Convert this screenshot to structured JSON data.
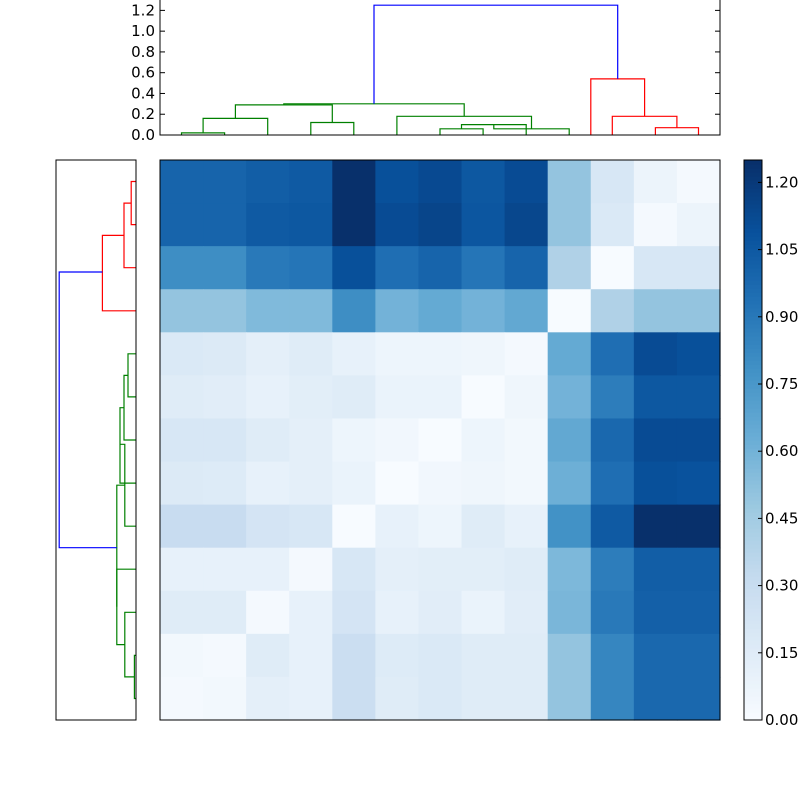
{
  "chart_data": [
    {
      "type": "dendrogram",
      "orientation": "top",
      "ylim": [
        0,
        1.3
      ],
      "y_ticks": [
        "0.0",
        "0.2",
        "0.4",
        "0.6",
        "0.8",
        "1.0",
        "1.2"
      ],
      "y_tick_values": [
        0,
        0.2,
        0.4,
        0.6,
        0.8,
        1.0,
        1.2
      ],
      "leaf_count": 13,
      "colors": {
        "cluster_a": "#008000",
        "cluster_b": "#ff0000",
        "root": "#0000ff"
      },
      "links": [
        {
          "left": 0,
          "right": 1,
          "height": 0.02,
          "color": "cluster_a"
        },
        {
          "left": "0-1",
          "right": 2,
          "height": 0.16,
          "color": "cluster_a"
        },
        {
          "left": 3,
          "right": 4,
          "height": 0.12,
          "color": "cluster_a"
        },
        {
          "left": "0-2",
          "right": "3-4",
          "height": 0.29,
          "color": "cluster_a"
        },
        {
          "left": 6,
          "right": 7,
          "height": 0.06,
          "color": "cluster_a"
        },
        {
          "left": "6-7",
          "right": 8,
          "height": 0.1,
          "color": "cluster_a"
        },
        {
          "left": "6-8",
          "right": 9,
          "height": 0.06,
          "color": "cluster_a"
        },
        {
          "left": 5,
          "right": "6-9",
          "height": 0.18,
          "color": "cluster_a"
        },
        {
          "left": "0-4",
          "right": "5-9",
          "height": 0.3,
          "color": "cluster_a"
        },
        {
          "left": 11,
          "right": 12,
          "height": 0.07,
          "color": "cluster_b"
        },
        {
          "left": 10,
          "right": "11-12",
          "height": 0.18,
          "color": "cluster_b"
        },
        {
          "left": 9.5,
          "right": "10-12",
          "height": 0.54,
          "color": "cluster_b"
        },
        {
          "left": "0-9",
          "right": "9.5-12",
          "height": 1.25,
          "color": "root"
        }
      ]
    },
    {
      "type": "dendrogram",
      "orientation": "left",
      "leaf_count": 13,
      "colors": {
        "cluster_a": "#008000",
        "cluster_b": "#ff0000",
        "root": "#0000ff"
      }
    },
    {
      "type": "heatmap",
      "rows": 13,
      "cols": 13,
      "colormap": "Blues",
      "vmin": 0,
      "vmax": 1.25,
      "values": [
        [
          1.0,
          1.0,
          1.03,
          1.05,
          1.25,
          1.1,
          1.13,
          1.06,
          1.12,
          0.5,
          0.2,
          0.07,
          0.02
        ],
        [
          1.0,
          1.0,
          1.05,
          1.06,
          1.25,
          1.12,
          1.15,
          1.07,
          1.14,
          0.5,
          0.18,
          0.02,
          0.07
        ],
        [
          0.8,
          0.8,
          0.9,
          0.92,
          1.1,
          0.95,
          1.0,
          0.92,
          1.0,
          0.4,
          0.0,
          0.2,
          0.2
        ],
        [
          0.5,
          0.5,
          0.56,
          0.56,
          0.8,
          0.6,
          0.65,
          0.6,
          0.66,
          0.0,
          0.4,
          0.5,
          0.5
        ],
        [
          0.18,
          0.17,
          0.12,
          0.15,
          0.1,
          0.06,
          0.06,
          0.05,
          0.02,
          0.65,
          0.95,
          1.12,
          1.1
        ],
        [
          0.15,
          0.14,
          0.1,
          0.13,
          0.15,
          0.08,
          0.08,
          0.0,
          0.05,
          0.6,
          0.88,
          1.06,
          1.06
        ],
        [
          0.2,
          0.2,
          0.15,
          0.12,
          0.06,
          0.04,
          0.0,
          0.06,
          0.03,
          0.66,
          0.98,
          1.12,
          1.12
        ],
        [
          0.17,
          0.16,
          0.1,
          0.12,
          0.08,
          0.0,
          0.04,
          0.05,
          0.03,
          0.62,
          0.95,
          1.1,
          1.09
        ],
        [
          0.3,
          0.3,
          0.22,
          0.2,
          0.0,
          0.1,
          0.06,
          0.15,
          0.1,
          0.78,
          1.05,
          1.25,
          1.25
        ],
        [
          0.1,
          0.1,
          0.1,
          0.02,
          0.2,
          0.12,
          0.13,
          0.13,
          0.15,
          0.57,
          0.88,
          1.03,
          1.03
        ],
        [
          0.15,
          0.15,
          0.02,
          0.1,
          0.22,
          0.1,
          0.14,
          0.08,
          0.14,
          0.58,
          0.9,
          1.02,
          1.02
        ],
        [
          0.03,
          0.02,
          0.15,
          0.1,
          0.28,
          0.16,
          0.18,
          0.15,
          0.15,
          0.5,
          0.84,
          0.98,
          0.98
        ],
        [
          0.02,
          0.03,
          0.12,
          0.1,
          0.28,
          0.15,
          0.18,
          0.15,
          0.15,
          0.5,
          0.84,
          0.98,
          0.98
        ]
      ]
    },
    {
      "type": "colorbar",
      "colormap": "Blues",
      "vmin": 0,
      "vmax": 1.25,
      "tick_labels": [
        "0.00",
        "0.15",
        "0.30",
        "0.45",
        "0.60",
        "0.75",
        "0.90",
        "1.05",
        "1.20"
      ],
      "tick_values": [
        0,
        0.15,
        0.3,
        0.45,
        0.6,
        0.75,
        0.9,
        1.05,
        1.2
      ]
    }
  ]
}
